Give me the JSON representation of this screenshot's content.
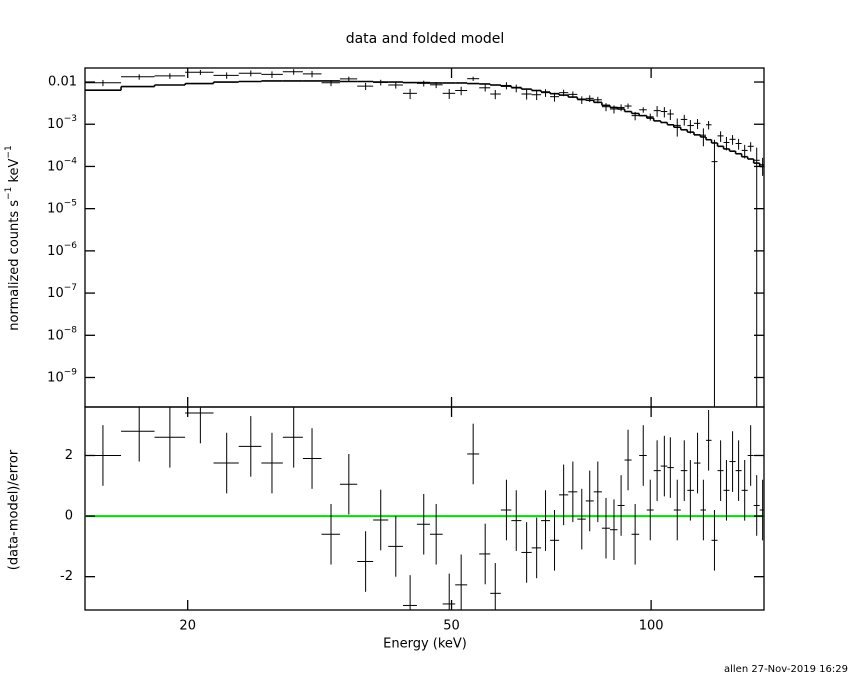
{
  "chart_data": [
    {
      "type": "errorbar",
      "title": "data and folded model",
      "ylabel_parts": [
        "normalized counts s",
        "−1",
        " keV",
        "−1"
      ],
      "log_y": true,
      "ylim": [
        2e-10,
        0.0215
      ],
      "yticks": [
        0.01,
        {
          "value": 0.001,
          "label": "10",
          "sup": "−3"
        },
        {
          "value": 0.0001,
          "label": "10",
          "sup": "−4"
        },
        {
          "value": 1e-05,
          "label": "10",
          "sup": "−5"
        },
        {
          "value": 1e-06,
          "label": "10",
          "sup": "−6"
        },
        {
          "value": 1e-07,
          "label": "10",
          "sup": "−7"
        },
        {
          "value": 1e-08,
          "label": "10",
          "sup": "−8"
        },
        {
          "value": 1e-09,
          "label": "10",
          "sup": "−9"
        }
      ],
      "color": "#000000",
      "model_color": "#000000",
      "x": [
        14.9,
        16.9,
        18.8,
        20.9,
        22.9,
        24.9,
        26.8,
        28.9,
        30.8,
        32.9,
        35.0,
        37.1,
        39.1,
        41.2,
        43.3,
        45.4,
        47.4,
        49.6,
        51.7,
        53.9,
        56.2,
        58.2,
        60.5,
        62.6,
        64.9,
        67.2,
        69.3,
        71.5,
        73.8,
        76.2,
        78.6,
        80.8,
        83.1,
        85.5,
        87.9,
        90.1,
        92.3,
        94.6,
        97.3,
        99.7,
        102.1,
        104.7,
        106.9,
        109.5,
        112.2,
        114.6,
        117.5,
        119.9,
        122.1,
        124.6,
        127.3,
        129.9,
        132.7,
        135.5,
        138.4,
        141.3,
        144.3,
        147.3
      ],
      "values": [
        0.0096,
        0.0133,
        0.014,
        0.017,
        0.0144,
        0.0162,
        0.0152,
        0.0175,
        0.0156,
        0.0096,
        0.0119,
        0.008,
        0.0098,
        0.0085,
        0.0054,
        0.0093,
        0.0086,
        0.0054,
        0.0063,
        0.012,
        0.0073,
        0.0052,
        0.0083,
        0.0072,
        0.0052,
        0.005,
        0.0056,
        0.0045,
        0.0056,
        0.0051,
        0.0038,
        0.0041,
        0.0038,
        0.0026,
        0.0023,
        0.0025,
        0.0027,
        0.0016,
        0.0022,
        0.0015,
        0.0021,
        0.002,
        0.00175,
        0.00094,
        0.0013,
        0.00093,
        0.00105,
        0.00055,
        0.00097,
        0.00013,
        0.00053,
        0.00037,
        0.00044,
        0.00035,
        0.00024,
        0.0003,
        0.00014,
        0.00011
      ],
      "errors": [
        0.0016,
        0.00195,
        0.00213,
        0.0023,
        0.0025,
        0.00258,
        0.00265,
        0.00265,
        0.00265,
        0.0016,
        0.00155,
        0.00155,
        0.0015,
        0.0015,
        0.00146,
        0.00146,
        0.00143,
        0.00143,
        0.00143,
        0.00138,
        0.00135,
        0.00128,
        0.0016,
        0.00148,
        0.00136,
        0.00126,
        0.00116,
        0.00106,
        0.00098,
        0.00088,
        0.00078,
        0.00074,
        0.00066,
        0.00056,
        0.0005,
        0.00046,
        0.0004,
        0.00036,
        0.00032,
        0.00028,
        0.0006,
        0.00055,
        0.00049,
        0.00043,
        0.00037,
        0.00033,
        0.00028,
        0.00025,
        0.00022,
        0.0003,
        0.00015,
        0.00013,
        0.000115,
        0.0001,
        8.5e-05,
        7.5e-05,
        0.00014,
        5e-05
      ],
      "model_values": [
        0.0064,
        0.0078,
        0.0085,
        0.0092,
        0.01,
        0.0103,
        0.0106,
        0.0106,
        0.0106,
        0.0106,
        0.0103,
        0.0103,
        0.01,
        0.01,
        0.0097,
        0.0097,
        0.0095,
        0.0095,
        0.0095,
        0.0092,
        0.009,
        0.0085,
        0.008,
        0.0074,
        0.0068,
        0.0063,
        0.0058,
        0.0053,
        0.0049,
        0.0044,
        0.0039,
        0.0037,
        0.0033,
        0.0028,
        0.0025,
        0.0023,
        0.002,
        0.0018,
        0.0016,
        0.0014,
        0.0012,
        0.0011,
        0.00097,
        0.00085,
        0.00074,
        0.00065,
        0.00056,
        0.0005,
        0.00043,
        0.00036,
        0.0003,
        0.00026,
        0.00023,
        0.0002,
        0.00017,
        0.00015,
        0.00012,
        0.0001
      ]
    },
    {
      "type": "residual",
      "ylabel": "(data-model)/error",
      "xlabel": "Energy (keV)",
      "log_x": true,
      "xlim": [
        14,
        148
      ],
      "xticks": [
        20,
        50,
        100
      ],
      "ylim": [
        -3.1,
        3.6
      ],
      "yticks": [
        -2,
        0,
        2
      ],
      "color": "#000000",
      "error": 1,
      "zero_line": {
        "value": 0,
        "color": "#00e000"
      },
      "values": [
        2.0,
        2.8,
        2.6,
        3.4,
        1.75,
        2.3,
        1.75,
        2.6,
        1.9,
        -0.6,
        1.05,
        -1.5,
        -0.13,
        -1.0,
        -2.95,
        -0.27,
        -0.6,
        -2.9,
        -2.27,
        2.05,
        -1.25,
        -2.55,
        0.2,
        -0.15,
        -1.2,
        -1.05,
        -0.15,
        -0.8,
        0.7,
        0.8,
        -0.1,
        0.5,
        0.8,
        -0.4,
        -0.45,
        0.35,
        1.85,
        -0.6,
        2.0,
        0.2,
        1.5,
        1.65,
        1.6,
        0.2,
        1.5,
        0.85,
        1.75,
        0.2,
        2.5,
        -0.8,
        1.5,
        0.85,
        1.8,
        1.5,
        0.85,
        2.0,
        0.35,
        0.2
      ]
    }
  ],
  "footer": "allen 27-Nov-2019 16:29"
}
